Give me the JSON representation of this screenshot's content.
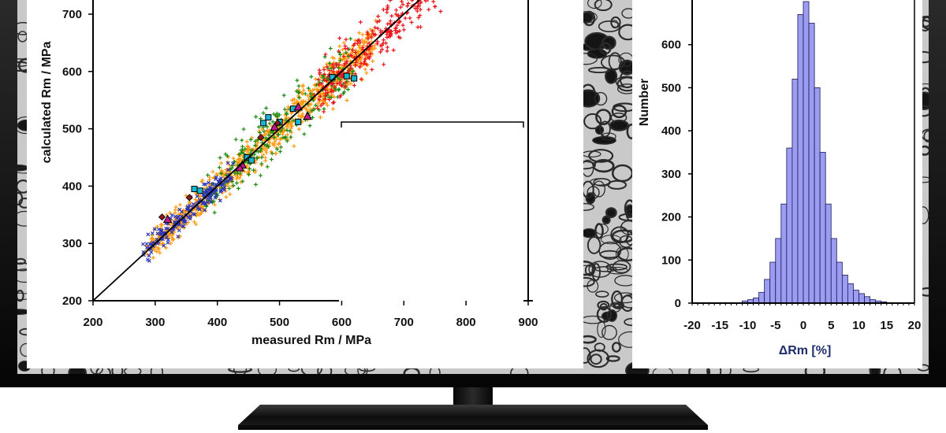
{
  "colors": {
    "bezel": "#111111",
    "micrograph_bg": "#c9c9c9",
    "micrograph_grain": "#2a2a2a",
    "series_red": "#e8141b",
    "series_green": "#1f8a14",
    "series_orange": "#ff9a10",
    "series_blue": "#2a35b8",
    "series_cyan": "#19b6d2",
    "series_magenta": "#c0198f",
    "histogram_fill": "#9c9cf0",
    "histogram_stroke": "#1a1a5a"
  },
  "chart_data": [
    {
      "type": "scatter",
      "xlabel": "measured Rm / MPa",
      "ylabel": "calculated Rm / MPa",
      "x_ticks": [
        200,
        300,
        400,
        500,
        600,
        700,
        800,
        900
      ],
      "y_ticks": [
        200,
        300,
        400,
        500,
        600,
        700
      ],
      "xlim": [
        200,
        900
      ],
      "ylim": [
        200,
        700
      ],
      "reference_line": {
        "from": [
          200,
          200
        ],
        "to": [
          900,
          900
        ]
      },
      "series": [
        {
          "color": "#ff9a10",
          "marker": "plus",
          "x_range": [
            290,
            650
          ],
          "count": 900,
          "spread": 18
        },
        {
          "color": "#1f8a14",
          "marker": "plus",
          "x_range": [
            380,
            620
          ],
          "count": 240,
          "spread": 26
        },
        {
          "color": "#e8141b",
          "marker": "plus",
          "x_range": [
            560,
            760
          ],
          "count": 320,
          "spread": 22
        },
        {
          "color": "#2a35b8",
          "marker": "x",
          "x_range": [
            285,
            420
          ],
          "count": 180,
          "spread": 16
        },
        {
          "color": "#19b6d2",
          "marker": "square",
          "points": [
            [
              363,
              395
            ],
            [
              372,
              392
            ],
            [
              448,
              450
            ],
            [
              455,
              445
            ],
            [
              474,
              510
            ],
            [
              482,
              520
            ],
            [
              500,
              512
            ],
            [
              522,
              535
            ],
            [
              530,
              512
            ],
            [
              585,
              590
            ],
            [
              608,
              592
            ],
            [
              620,
              588
            ]
          ]
        },
        {
          "color": "#c0198f",
          "marker": "triangle",
          "points": [
            [
              440,
              437
            ],
            [
              436,
              432
            ],
            [
              492,
              503
            ],
            [
              530,
              538
            ],
            [
              545,
              522
            ],
            [
              320,
              342
            ]
          ]
        },
        {
          "color": "#8a1a1a",
          "marker": "diamond",
          "points": [
            [
              311,
              346
            ],
            [
              355,
              380
            ],
            [
              470,
              485
            ],
            [
              497,
              510
            ]
          ]
        }
      ]
    },
    {
      "type": "bar",
      "xlabel": "ΔRm [%]",
      "ylabel": "Number",
      "x_ticks": [
        -20,
        -15,
        -10,
        -5,
        0,
        5,
        10,
        15,
        20
      ],
      "y_ticks": [
        0,
        100,
        200,
        300,
        400,
        500,
        600
      ],
      "xlim": [
        -20,
        20
      ],
      "ylim": [
        0,
        700
      ],
      "bin_width": 1,
      "bin_starts": [
        -11,
        -10,
        -9,
        -8,
        -7,
        -6,
        -5,
        -4,
        -3,
        -2,
        -1,
        0,
        1,
        2,
        3,
        4,
        5,
        6,
        7,
        8,
        9,
        10,
        11,
        12,
        13,
        14
      ],
      "values": [
        5,
        8,
        12,
        25,
        55,
        95,
        150,
        230,
        360,
        520,
        670,
        700,
        650,
        500,
        350,
        230,
        150,
        95,
        65,
        45,
        30,
        22,
        15,
        8,
        5,
        3
      ]
    }
  ]
}
